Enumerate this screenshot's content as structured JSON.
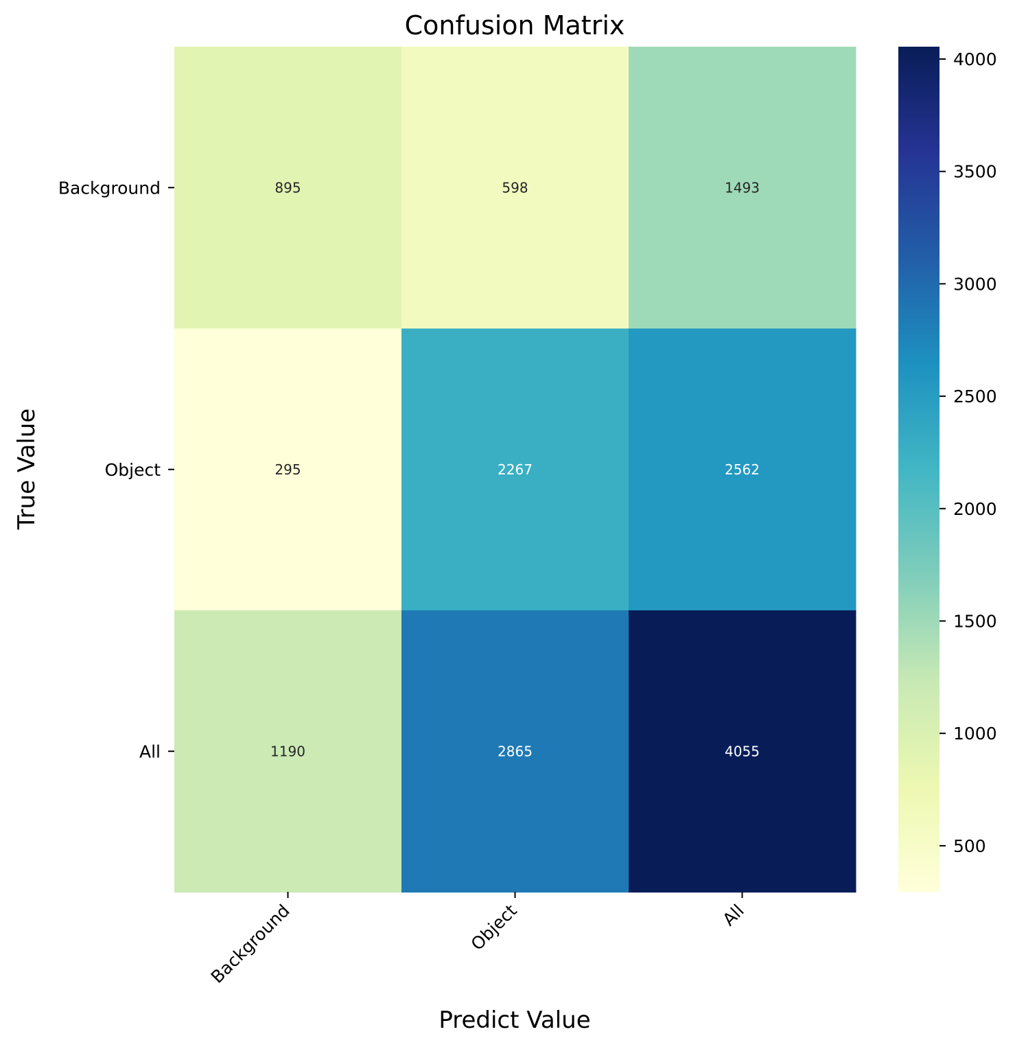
{
  "chart_data": {
    "type": "heatmap",
    "title": "Confusion Matrix",
    "xlabel": "Predict Value",
    "ylabel": "True Value",
    "x_categories": [
      "Background",
      "Object",
      "All"
    ],
    "y_categories": [
      "Background",
      "Object",
      "All"
    ],
    "values": [
      [
        895,
        598,
        1493
      ],
      [
        295,
        2267,
        2562
      ],
      [
        1190,
        2865,
        4055
      ]
    ],
    "colormap": "YlGnBu",
    "colorbar": {
      "range": [
        295,
        4055
      ],
      "ticks": [
        "500",
        "1000",
        "1500",
        "2000",
        "2500",
        "3000",
        "3500",
        "4000"
      ]
    }
  }
}
